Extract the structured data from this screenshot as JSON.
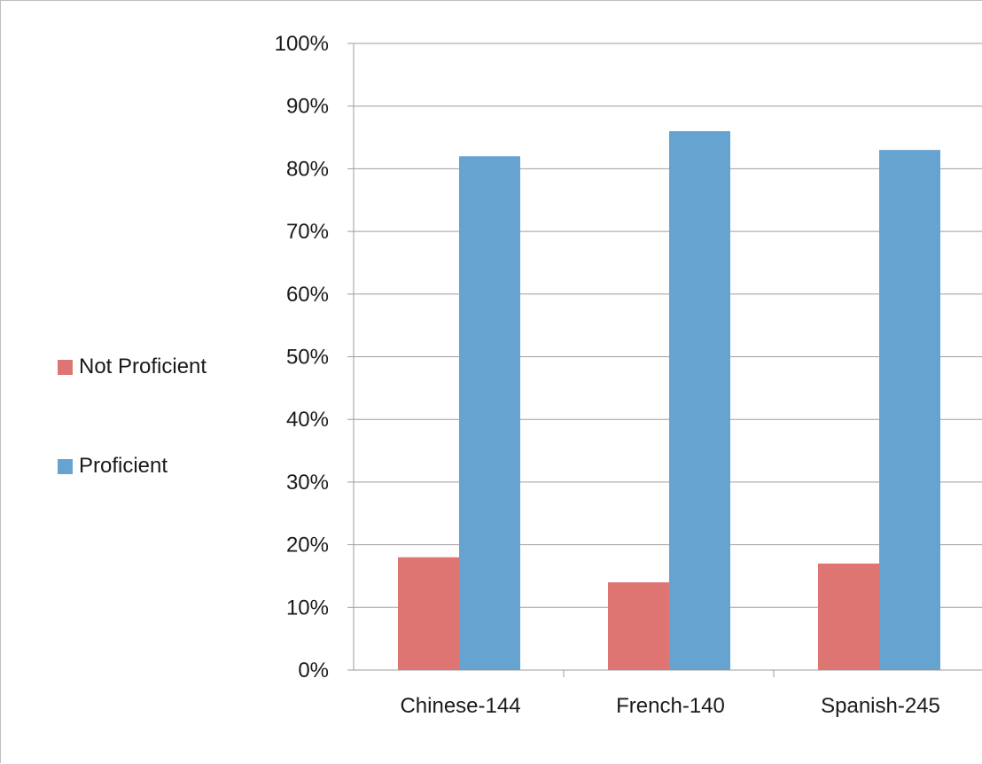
{
  "chart_data": {
    "type": "bar",
    "categories": [
      "Chinese-144",
      "French-140",
      "Spanish-245"
    ],
    "series": [
      {
        "name": "Not Proficient",
        "values": [
          18,
          14,
          17
        ],
        "color": "#de7572"
      },
      {
        "name": "Proficient",
        "values": [
          82,
          86,
          83
        ],
        "color": "#67a3d1"
      }
    ],
    "ylim": [
      0,
      100
    ],
    "yticks": [
      "0%",
      "10%",
      "20%",
      "30%",
      "40%",
      "50%",
      "60%",
      "70%",
      "80%",
      "90%",
      "100%"
    ],
    "grid": true,
    "legend_position": "left",
    "colors": {
      "grid": "#9e9e9e",
      "axis": "#9e9e9e",
      "text": "#1a1a1a"
    }
  }
}
